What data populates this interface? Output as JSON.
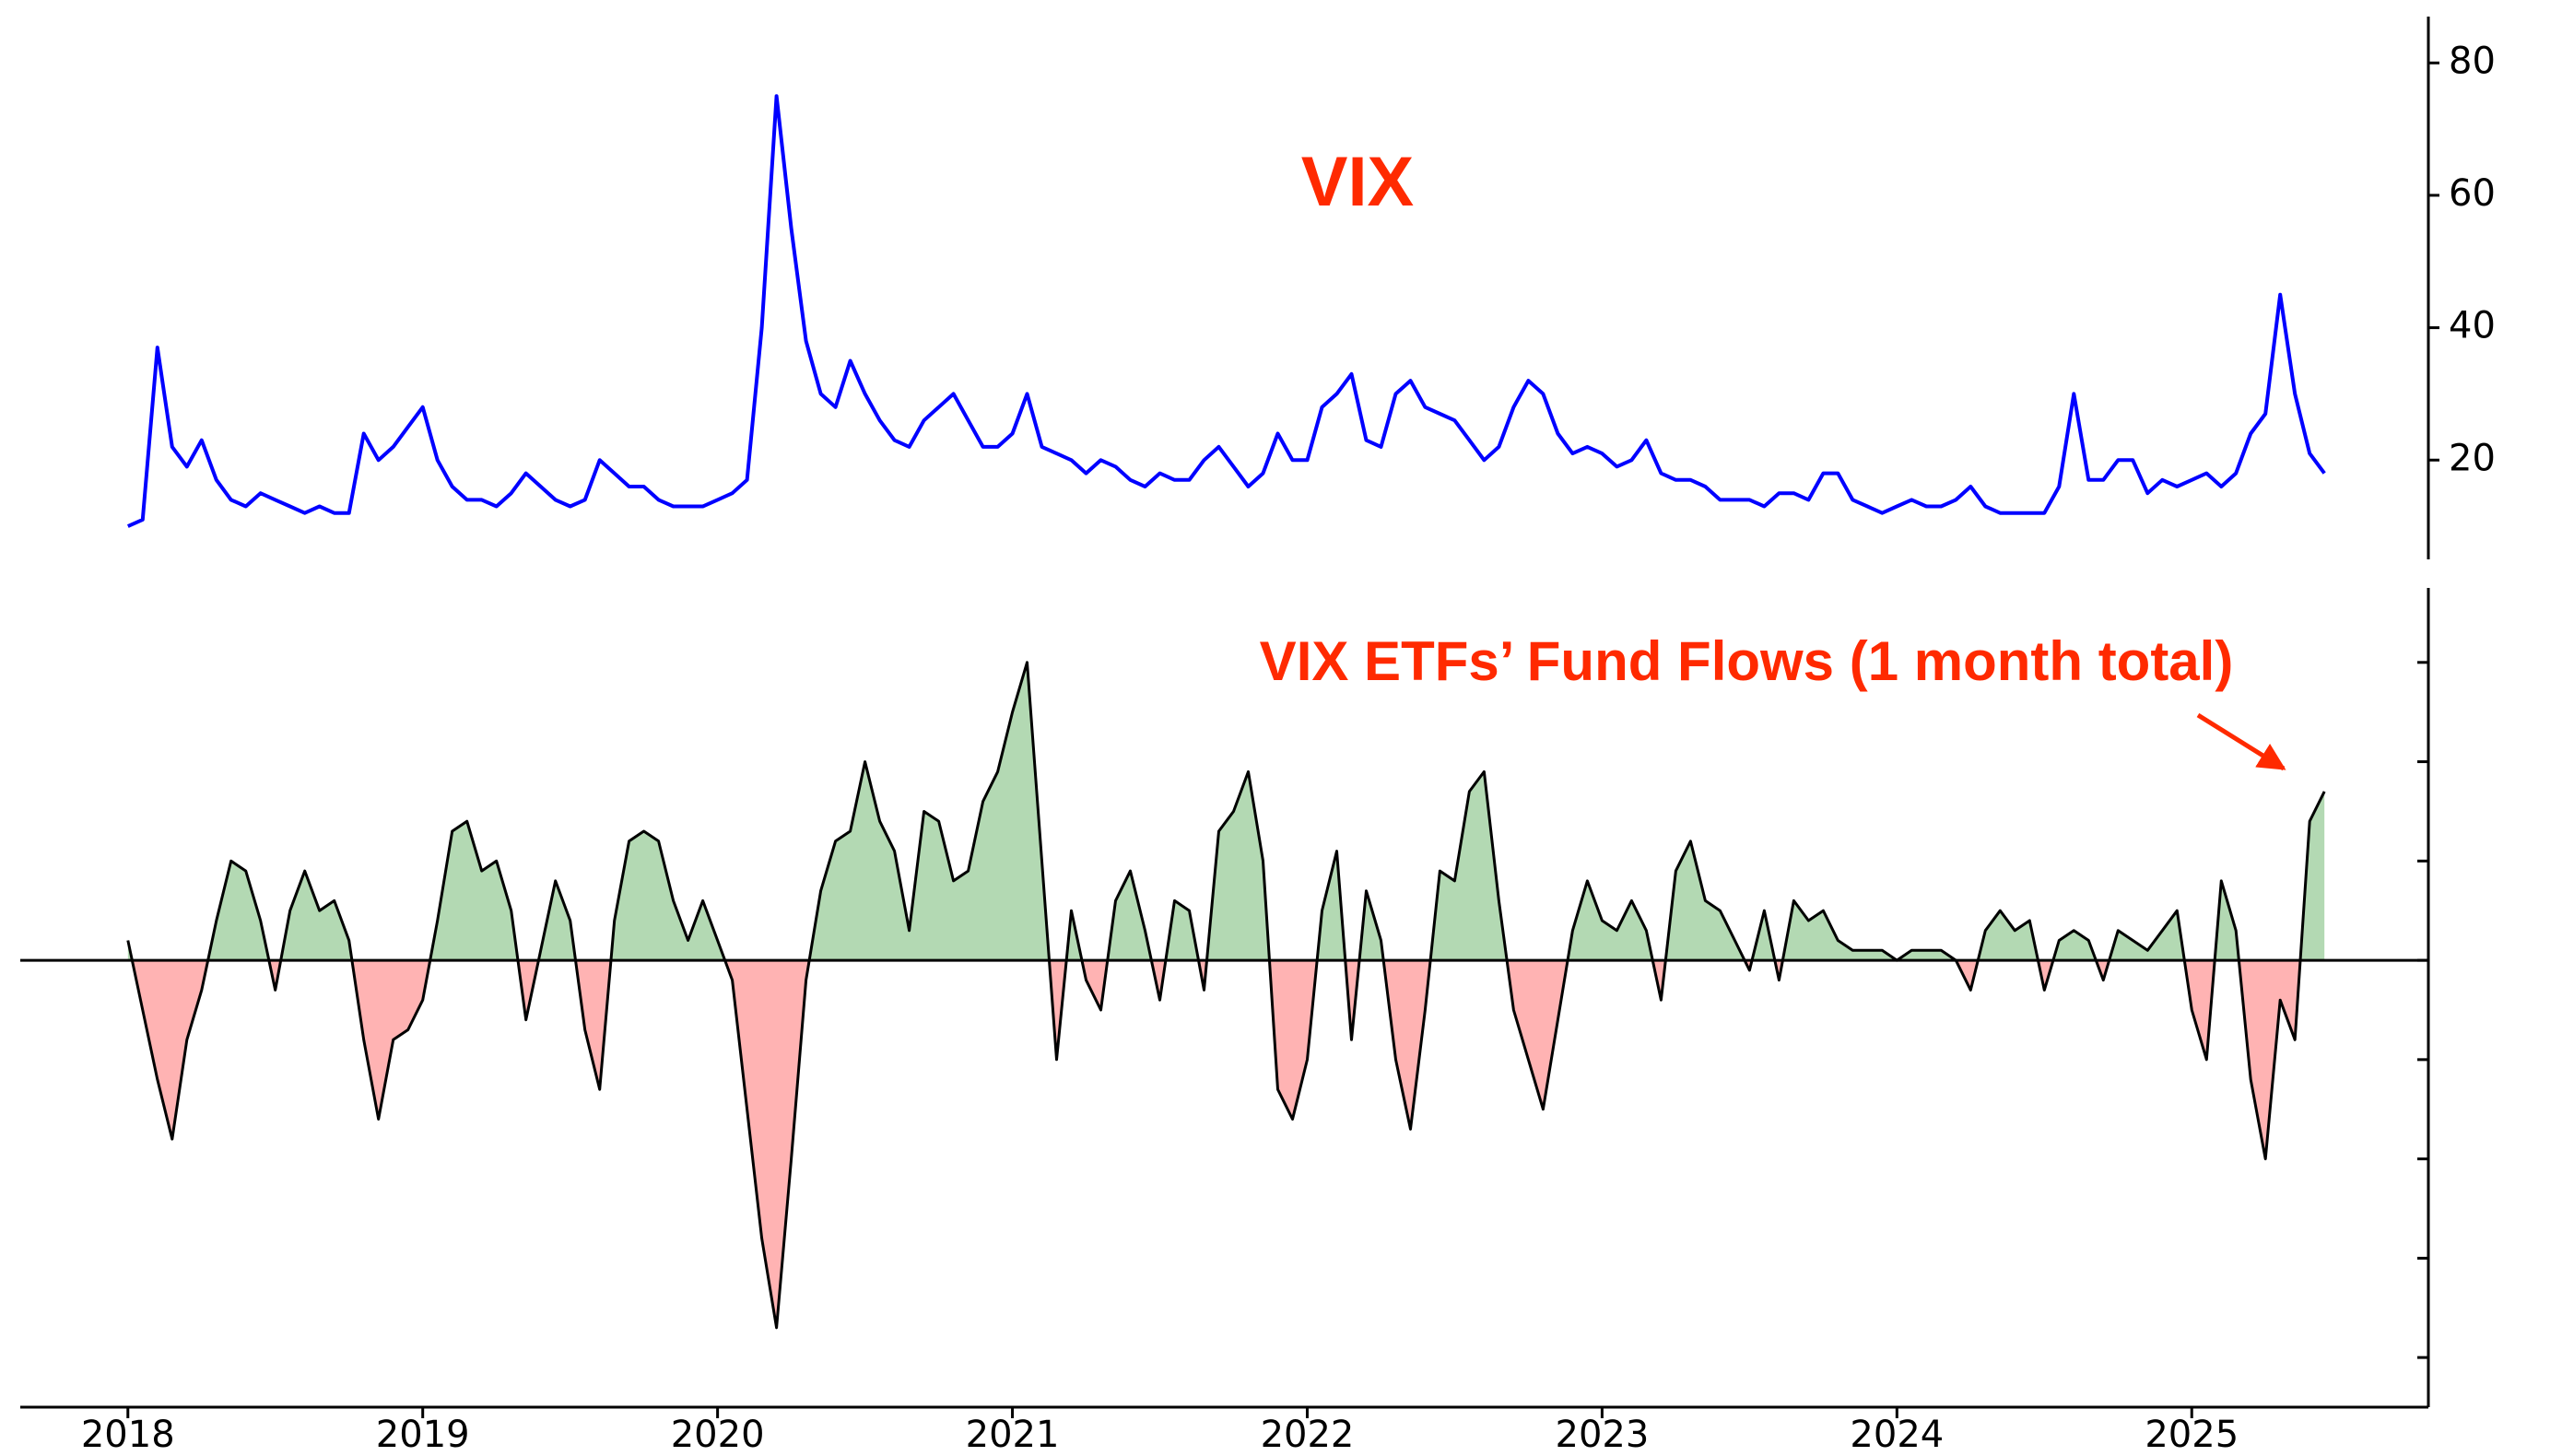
{
  "chart_data": [
    {
      "type": "line",
      "title": "VIX",
      "color": "#0000ff",
      "axis_side": "right",
      "xlim": [
        2017.635,
        2025.79
      ],
      "ylim": [
        5,
        87
      ],
      "yticks": [
        20,
        40,
        60,
        80
      ],
      "x": [
        2018.0,
        2018.05,
        2018.1,
        2018.15,
        2018.2,
        2018.25,
        2018.3,
        2018.35,
        2018.4,
        2018.45,
        2018.5,
        2018.55,
        2018.6,
        2018.65,
        2018.7,
        2018.75,
        2018.8,
        2018.85,
        2018.9,
        2018.95,
        2019.0,
        2019.05,
        2019.1,
        2019.15,
        2019.2,
        2019.25,
        2019.3,
        2019.35,
        2019.4,
        2019.45,
        2019.5,
        2019.55,
        2019.6,
        2019.65,
        2019.7,
        2019.75,
        2019.8,
        2019.85,
        2019.9,
        2019.95,
        2020.0,
        2020.05,
        2020.1,
        2020.15,
        2020.2,
        2020.25,
        2020.3,
        2020.35,
        2020.4,
        2020.45,
        2020.5,
        2020.55,
        2020.6,
        2020.65,
        2020.7,
        2020.75,
        2020.8,
        2020.85,
        2020.9,
        2020.95,
        2021.0,
        2021.05,
        2021.1,
        2021.15,
        2021.2,
        2021.25,
        2021.3,
        2021.35,
        2021.4,
        2021.45,
        2021.5,
        2021.55,
        2021.6,
        2021.65,
        2021.7,
        2021.75,
        2021.8,
        2021.85,
        2021.9,
        2021.95,
        2022.0,
        2022.05,
        2022.1,
        2022.15,
        2022.2,
        2022.25,
        2022.3,
        2022.35,
        2022.4,
        2022.45,
        2022.5,
        2022.55,
        2022.6,
        2022.65,
        2022.7,
        2022.75,
        2022.8,
        2022.85,
        2022.9,
        2022.95,
        2023.0,
        2023.05,
        2023.1,
        2023.15,
        2023.2,
        2023.25,
        2023.3,
        2023.35,
        2023.4,
        2023.45,
        2023.5,
        2023.55,
        2023.6,
        2023.65,
        2023.7,
        2023.75,
        2023.8,
        2023.85,
        2023.9,
        2023.95,
        2024.0,
        2024.05,
        2024.1,
        2024.15,
        2024.2,
        2024.25,
        2024.3,
        2024.35,
        2024.4,
        2024.45,
        2024.5,
        2024.55,
        2024.6,
        2024.65,
        2024.7,
        2024.75,
        2024.8,
        2024.85,
        2024.9,
        2024.95,
        2025.0,
        2025.05,
        2025.1,
        2025.15,
        2025.2,
        2025.25,
        2025.3,
        2025.35,
        2025.4,
        2025.45
      ],
      "values": [
        10,
        11,
        37,
        22,
        19,
        23,
        17,
        14,
        13,
        15,
        14,
        13,
        12,
        13,
        12,
        12,
        24,
        20,
        22,
        25,
        28,
        20,
        16,
        14,
        14,
        13,
        15,
        18,
        16,
        14,
        13,
        14,
        20,
        18,
        16,
        16,
        14,
        13,
        13,
        13,
        14,
        15,
        17,
        40,
        75,
        55,
        38,
        30,
        28,
        35,
        30,
        26,
        23,
        22,
        26,
        28,
        30,
        26,
        22,
        22,
        24,
        30,
        22,
        21,
        20,
        18,
        20,
        19,
        17,
        16,
        18,
        17,
        17,
        20,
        22,
        19,
        16,
        18,
        24,
        20,
        20,
        28,
        30,
        33,
        23,
        22,
        30,
        32,
        28,
        27,
        26,
        23,
        20,
        22,
        28,
        32,
        30,
        24,
        21,
        22,
        21,
        19,
        20,
        23,
        18,
        17,
        17,
        16,
        14,
        14,
        14,
        13,
        15,
        15,
        14,
        18,
        18,
        14,
        13,
        12,
        13,
        14,
        13,
        13,
        14,
        16,
        13,
        12,
        12,
        12,
        12,
        16,
        30,
        17,
        17,
        20,
        20,
        15,
        17,
        16,
        17,
        18,
        16,
        18,
        24,
        27,
        45,
        30,
        21,
        18
      ]
    },
    {
      "type": "area",
      "title": "VIX ETFs’ Fund Flows (1 month total)",
      "color": "#000000",
      "positive_color": "#b3d9b3",
      "negative_color": "#ffb3b3",
      "axis_side": "right",
      "ytick_labels": false,
      "xlim": [
        2017.635,
        2025.79
      ],
      "ylim": [
        -4.5,
        3.75
      ],
      "yticks": [
        -4,
        -3,
        -2,
        -1,
        0,
        1,
        2,
        3
      ],
      "xticks": [
        2018,
        2019,
        2020,
        2021,
        2022,
        2023,
        2024,
        2025
      ],
      "x": [
        2018.0,
        2018.05,
        2018.1,
        2018.15,
        2018.2,
        2018.25,
        2018.3,
        2018.35,
        2018.4,
        2018.45,
        2018.5,
        2018.55,
        2018.6,
        2018.65,
        2018.7,
        2018.75,
        2018.8,
        2018.85,
        2018.9,
        2018.95,
        2019.0,
        2019.05,
        2019.1,
        2019.15,
        2019.2,
        2019.25,
        2019.3,
        2019.35,
        2019.4,
        2019.45,
        2019.5,
        2019.55,
        2019.6,
        2019.65,
        2019.7,
        2019.75,
        2019.8,
        2019.85,
        2019.9,
        2019.95,
        2020.0,
        2020.05,
        2020.1,
        2020.15,
        2020.2,
        2020.25,
        2020.3,
        2020.35,
        2020.4,
        2020.45,
        2020.5,
        2020.55,
        2020.6,
        2020.65,
        2020.7,
        2020.75,
        2020.8,
        2020.85,
        2020.9,
        2020.95,
        2021.0,
        2021.05,
        2021.1,
        2021.15,
        2021.2,
        2021.25,
        2021.3,
        2021.35,
        2021.4,
        2021.45,
        2021.5,
        2021.55,
        2021.6,
        2021.65,
        2021.7,
        2021.75,
        2021.8,
        2021.85,
        2021.9,
        2021.95,
        2022.0,
        2022.05,
        2022.1,
        2022.15,
        2022.2,
        2022.25,
        2022.3,
        2022.35,
        2022.4,
        2022.45,
        2022.5,
        2022.55,
        2022.6,
        2022.65,
        2022.7,
        2022.75,
        2022.8,
        2022.85,
        2022.9,
        2022.95,
        2023.0,
        2023.05,
        2023.1,
        2023.15,
        2023.2,
        2023.25,
        2023.3,
        2023.35,
        2023.4,
        2023.45,
        2023.5,
        2023.55,
        2023.6,
        2023.65,
        2023.7,
        2023.75,
        2023.8,
        2023.85,
        2023.9,
        2023.95,
        2024.0,
        2024.05,
        2024.1,
        2024.15,
        2024.2,
        2024.25,
        2024.3,
        2024.35,
        2024.4,
        2024.45,
        2024.5,
        2024.55,
        2024.6,
        2024.65,
        2024.7,
        2024.75,
        2024.8,
        2024.85,
        2024.9,
        2024.95,
        2025.0,
        2025.05,
        2025.1,
        2025.15,
        2025.2,
        2025.25,
        2025.3,
        2025.35,
        2025.4,
        2025.45
      ],
      "values": [
        0.2,
        -0.5,
        -1.2,
        -1.8,
        -0.8,
        -0.3,
        0.4,
        1.0,
        0.9,
        0.4,
        -0.3,
        0.5,
        0.9,
        0.5,
        0.6,
        0.2,
        -0.8,
        -1.6,
        -0.8,
        -0.7,
        -0.4,
        0.4,
        1.3,
        1.4,
        0.9,
        1.0,
        0.5,
        -0.6,
        0.1,
        0.8,
        0.4,
        -0.7,
        -1.3,
        0.4,
        1.2,
        1.3,
        1.2,
        0.6,
        0.2,
        0.6,
        0.2,
        -0.2,
        -1.5,
        -2.8,
        -3.7,
        -2.0,
        -0.2,
        0.7,
        1.2,
        1.3,
        2.0,
        1.4,
        1.1,
        0.3,
        1.5,
        1.4,
        0.8,
        0.9,
        1.6,
        1.9,
        2.5,
        3.0,
        1.0,
        -1.0,
        0.5,
        -0.2,
        -0.5,
        0.6,
        0.9,
        0.3,
        -0.4,
        0.6,
        0.5,
        -0.3,
        1.3,
        1.5,
        1.9,
        1.0,
        -1.3,
        -1.6,
        -1.0,
        0.5,
        1.1,
        -0.8,
        0.7,
        0.2,
        -1.0,
        -1.7,
        -0.5,
        0.9,
        0.8,
        1.7,
        1.9,
        0.6,
        -0.5,
        -1.0,
        -1.5,
        -0.6,
        0.3,
        0.8,
        0.4,
        0.3,
        0.6,
        0.3,
        -0.4,
        0.9,
        1.2,
        0.6,
        0.5,
        0.2,
        -0.1,
        0.5,
        -0.2,
        0.6,
        0.4,
        0.5,
        0.2,
        0.1,
        0.1,
        0.1,
        0.0,
        0.1,
        0.1,
        0.1,
        0.0,
        -0.3,
        0.3,
        0.5,
        0.3,
        0.4,
        -0.3,
        0.2,
        0.3,
        0.2,
        -0.2,
        0.3,
        0.2,
        0.1,
        0.3,
        0.5,
        -0.5,
        -1.0,
        0.8,
        0.3,
        -1.2,
        -2.0,
        -0.4,
        -0.8,
        1.4,
        1.7
      ]
    }
  ]
}
